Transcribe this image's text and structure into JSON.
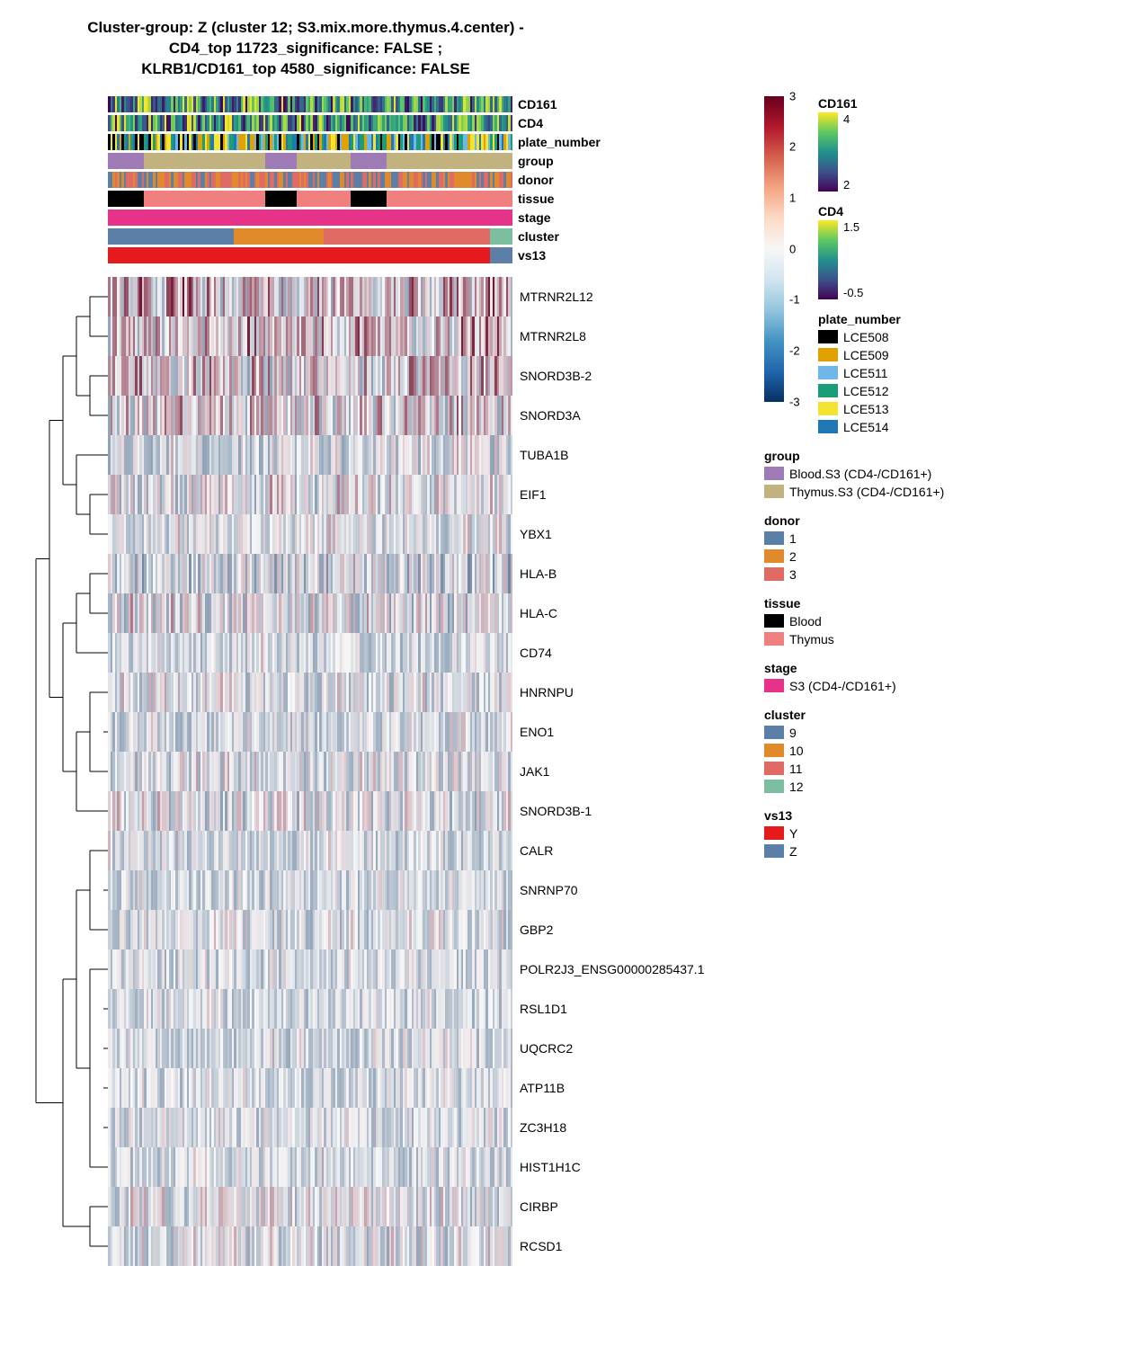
{
  "title_line1": "Cluster-group: Z (cluster 12; S3.mix.more.thymus.4.center) -",
  "title_line2": "CD4_top 11723_significance: FALSE ;",
  "title_line3": "KLRB1/CD161_top 4580_significance: FALSE",
  "n_columns": 180,
  "annot_tracks": [
    {
      "key": "CD161",
      "label": "CD161",
      "type": "continuous",
      "palette": [
        "#440154",
        "#3b528b",
        "#21918c",
        "#5ec962",
        "#fde725"
      ],
      "range": [
        2,
        4
      ]
    },
    {
      "key": "CD4",
      "label": "CD4",
      "type": "continuous",
      "palette": [
        "#440154",
        "#3b528b",
        "#21918c",
        "#5ec962",
        "#fde725"
      ],
      "range": [
        -0.5,
        1.5
      ]
    },
    {
      "key": "plate_number",
      "label": "plate_number",
      "type": "categorical",
      "levels": [
        "LCE508",
        "LCE509",
        "LCE511",
        "LCE512",
        "LCE513",
        "LCE514"
      ],
      "colors": {
        "LCE508": "#000000",
        "LCE509": "#e1a100",
        "LCE511": "#6fb7e8",
        "LCE512": "#1b9e77",
        "LCE513": "#f2e430",
        "LCE514": "#1f77b4"
      }
    },
    {
      "key": "group",
      "label": "group",
      "type": "categorical",
      "levels": [
        "Blood.S3 (CD4-/CD161+)",
        "Thymus.S3 (CD4-/CD161+)"
      ],
      "colors": {
        "Blood.S3 (CD4-/CD161+)": "#9e7bb5",
        "Thymus.S3 (CD4-/CD161+)": "#c2b280"
      },
      "blocks": [
        [
          "Blood.S3 (CD4-/CD161+)",
          16
        ],
        [
          "Thymus.S3 (CD4-/CD161+)",
          54
        ],
        [
          "Blood.S3 (CD4-/CD161+)",
          14
        ],
        [
          "Thymus.S3 (CD4-/CD161+)",
          24
        ],
        [
          "Blood.S3 (CD4-/CD161+)",
          16
        ],
        [
          "Thymus.S3 (CD4-/CD161+)",
          56
        ]
      ]
    },
    {
      "key": "donor",
      "label": "donor",
      "type": "categorical",
      "levels": [
        "1",
        "2",
        "3"
      ],
      "colors": {
        "1": "#5b7fa6",
        "2": "#e08a2c",
        "3": "#e06b64"
      }
    },
    {
      "key": "tissue",
      "label": "tissue",
      "type": "categorical",
      "levels": [
        "Blood",
        "Thymus"
      ],
      "colors": {
        "Blood": "#000000",
        "Thymus": "#f08080"
      },
      "blocks": [
        [
          "Blood",
          16
        ],
        [
          "Thymus",
          54
        ],
        [
          "Blood",
          14
        ],
        [
          "Thymus",
          24
        ],
        [
          "Blood",
          16
        ],
        [
          "Thymus",
          56
        ]
      ]
    },
    {
      "key": "stage",
      "label": "stage",
      "type": "categorical",
      "levels": [
        "S3 (CD4-/CD161+)"
      ],
      "colors": {
        "S3 (CD4-/CD161+)": "#e73289"
      },
      "blocks": [
        [
          "S3 (CD4-/CD161+)",
          180
        ]
      ]
    },
    {
      "key": "cluster",
      "label": "cluster",
      "type": "categorical",
      "levels": [
        "9",
        "10",
        "11",
        "12"
      ],
      "colors": {
        "9": "#5b7fa6",
        "10": "#e08a2c",
        "11": "#e06b64",
        "12": "#7bbfa0"
      },
      "blocks": [
        [
          "9",
          56
        ],
        [
          "10",
          40
        ],
        [
          "11",
          74
        ],
        [
          "12",
          10
        ]
      ]
    },
    {
      "key": "vs13",
      "label": "vs13",
      "type": "categorical",
      "levels": [
        "Y",
        "Z"
      ],
      "colors": {
        "Y": "#e41a1c",
        "Z": "#5b7fa6"
      },
      "blocks": [
        [
          "Y",
          170
        ],
        [
          "Z",
          10
        ]
      ]
    }
  ],
  "heatmap": {
    "scale": {
      "min": -3,
      "max": 3,
      "ticks": [
        3,
        2,
        1,
        0,
        -1,
        -2,
        -3
      ]
    },
    "palette_low": "#053061",
    "palette_mid": "#f7f7f7",
    "palette_high": "#67001f",
    "rows": [
      {
        "gene": "MTRNR2L12",
        "mean": 0.3,
        "spread": 1.6,
        "red_bias": 0.15
      },
      {
        "gene": "MTRNR2L8",
        "mean": 0.25,
        "spread": 1.5,
        "red_bias": 0.1
      },
      {
        "gene": "SNORD3B-2",
        "mean": 0.05,
        "spread": 1.4,
        "red_bias": 0.25
      },
      {
        "gene": "SNORD3A",
        "mean": 0.0,
        "spread": 1.3,
        "red_bias": 0.2
      },
      {
        "gene": "TUBA1B",
        "mean": -0.3,
        "spread": 1.0,
        "red_bias": 0.05
      },
      {
        "gene": "EIF1",
        "mean": -0.2,
        "spread": 1.1,
        "red_bias": 0.1
      },
      {
        "gene": "YBX1",
        "mean": -0.3,
        "spread": 0.9,
        "red_bias": 0.05
      },
      {
        "gene": "HLA-B",
        "mean": -0.4,
        "spread": 1.3,
        "red_bias": 0.0
      },
      {
        "gene": "HLA-C",
        "mean": -0.25,
        "spread": 1.2,
        "red_bias": 0.1
      },
      {
        "gene": "CD74",
        "mean": -0.4,
        "spread": 0.8,
        "red_bias": 0.05
      },
      {
        "gene": "HNRNPU",
        "mean": -0.35,
        "spread": 0.9,
        "red_bias": 0.1
      },
      {
        "gene": "ENO1",
        "mean": -0.4,
        "spread": 0.8,
        "red_bias": 0.08
      },
      {
        "gene": "JAK1",
        "mean": -0.35,
        "spread": 0.9,
        "red_bias": 0.12
      },
      {
        "gene": "SNORD3B-1",
        "mean": -0.35,
        "spread": 1.0,
        "red_bias": 0.2
      },
      {
        "gene": "CALR",
        "mean": -0.4,
        "spread": 0.8,
        "red_bias": 0.1
      },
      {
        "gene": "SNRNP70",
        "mean": -0.45,
        "spread": 0.7,
        "red_bias": 0.08
      },
      {
        "gene": "GBP2",
        "mean": -0.4,
        "spread": 0.8,
        "red_bias": 0.12
      },
      {
        "gene": "POLR2J3_ENSG00000285437.1",
        "mean": -0.45,
        "spread": 0.7,
        "red_bias": 0.1
      },
      {
        "gene": "RSL1D1",
        "mean": -0.45,
        "spread": 0.7,
        "red_bias": 0.08
      },
      {
        "gene": "UQCRC2",
        "mean": -0.45,
        "spread": 0.7,
        "red_bias": 0.1
      },
      {
        "gene": "ATP11B",
        "mean": -0.45,
        "spread": 0.7,
        "red_bias": 0.1
      },
      {
        "gene": "ZC3H18",
        "mean": -0.45,
        "spread": 0.7,
        "red_bias": 0.1
      },
      {
        "gene": "HIST1H1C",
        "mean": -0.45,
        "spread": 0.7,
        "red_bias": 0.1
      },
      {
        "gene": "CIRBP",
        "mean": -0.3,
        "spread": 0.9,
        "red_bias": 0.15
      },
      {
        "gene": "RCSD1",
        "mean": -0.35,
        "spread": 0.9,
        "red_bias": 0.15
      }
    ]
  },
  "dendrogram_groups": [
    [
      0,
      1
    ],
    [
      2,
      3
    ],
    [
      5,
      6
    ],
    [
      7,
      8
    ],
    [
      10,
      11,
      12
    ],
    [
      14,
      15,
      16
    ],
    [
      17,
      18,
      19,
      20,
      21,
      22
    ],
    [
      23,
      24
    ]
  ],
  "legend": {
    "colorbar_title": "",
    "cd161": {
      "title": "CD161",
      "stops": [
        "#fde725",
        "#5ec962",
        "#21918c",
        "#3b528b",
        "#440154"
      ],
      "labels": [
        "4",
        "",
        "",
        "",
        "2"
      ]
    },
    "cd4": {
      "title": "CD4",
      "stops": [
        "#fde725",
        "#5ec962",
        "#21918c",
        "#3b528b",
        "#440154"
      ],
      "labels": [
        "1.5",
        "",
        "",
        "",
        "-0.5"
      ]
    },
    "plate_number": {
      "title": "plate_number",
      "items": [
        [
          "#000000",
          "LCE508"
        ],
        [
          "#e1a100",
          "LCE509"
        ],
        [
          "#6fb7e8",
          "LCE511"
        ],
        [
          "#1b9e77",
          "LCE512"
        ],
        [
          "#f2e430",
          "LCE513"
        ],
        [
          "#1f77b4",
          "LCE514"
        ]
      ]
    },
    "group": {
      "title": "group",
      "items": [
        [
          "#9e7bb5",
          "Blood.S3 (CD4-/CD161+)"
        ],
        [
          "#c2b280",
          "Thymus.S3 (CD4-/CD161+)"
        ]
      ]
    },
    "donor": {
      "title": "donor",
      "items": [
        [
          "#5b7fa6",
          "1"
        ],
        [
          "#e08a2c",
          "2"
        ],
        [
          "#e06b64",
          "3"
        ]
      ]
    },
    "tissue": {
      "title": "tissue",
      "items": [
        [
          "#000000",
          "Blood"
        ],
        [
          "#f08080",
          "Thymus"
        ]
      ]
    },
    "stage": {
      "title": "stage",
      "items": [
        [
          "#e73289",
          "S3 (CD4-/CD161+)"
        ]
      ]
    },
    "cluster": {
      "title": "cluster",
      "items": [
        [
          "#5b7fa6",
          "9"
        ],
        [
          "#e08a2c",
          "10"
        ],
        [
          "#e06b64",
          "11"
        ],
        [
          "#7bbfa0",
          "12"
        ]
      ]
    },
    "vs13": {
      "title": "vs13",
      "items": [
        [
          "#e41a1c",
          "Y"
        ],
        [
          "#5b7fa6",
          "Z"
        ]
      ]
    }
  }
}
